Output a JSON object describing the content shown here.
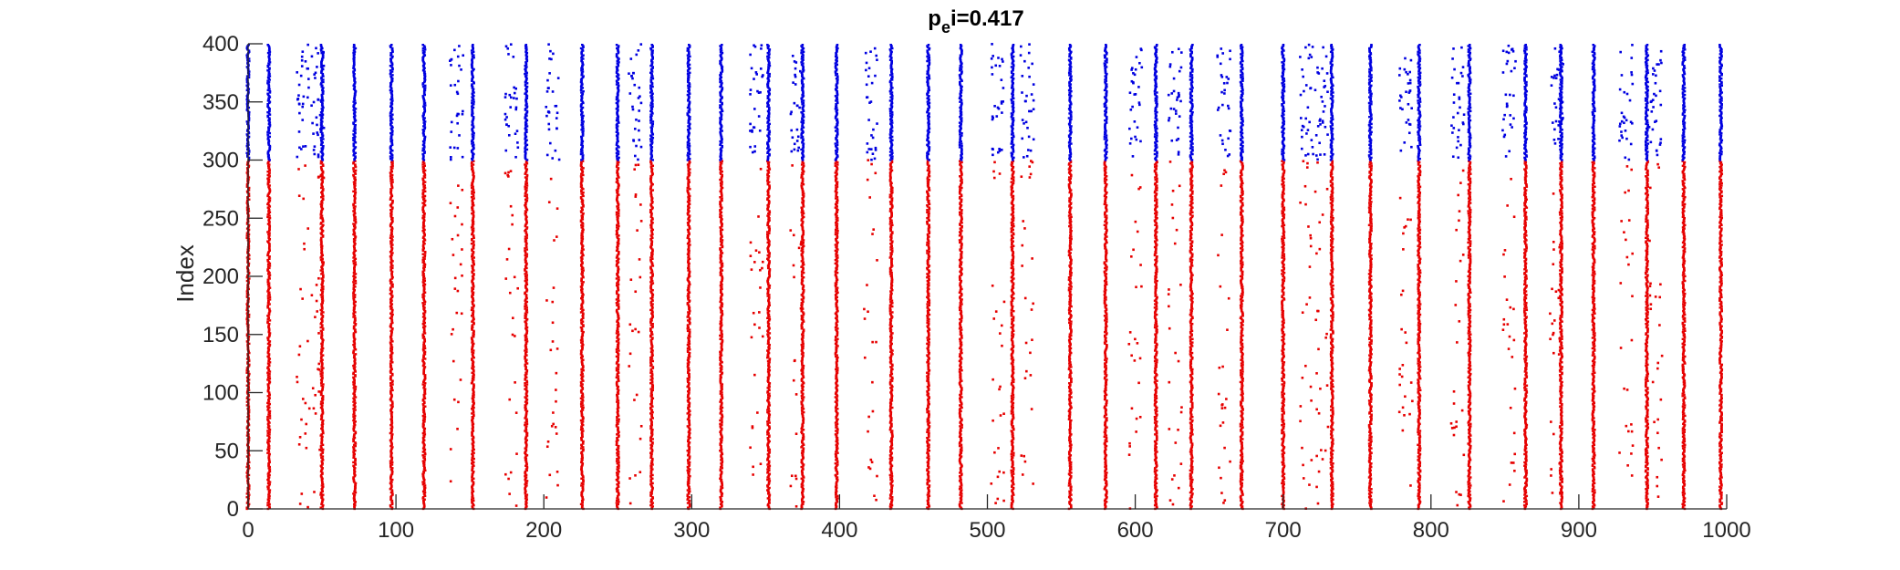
{
  "chart_data": {
    "type": "scatter",
    "title": {
      "base": "p",
      "sub": "e",
      "rest": "i=0.417"
    },
    "xlabel": "",
    "ylabel": "Index",
    "xlim": [
      0,
      1000
    ],
    "ylim": [
      0,
      400
    ],
    "xticks": [
      0,
      100,
      200,
      300,
      400,
      500,
      600,
      700,
      800,
      900,
      1000
    ],
    "yticks": [
      0,
      50,
      100,
      150,
      200,
      250,
      300,
      350,
      400
    ],
    "grid": false,
    "colors": {
      "excitatory": "#e60000",
      "inhibitory": "#0000e0",
      "axis": "#262626"
    },
    "series": [
      {
        "color": "excitatory",
        "index_range": [
          0,
          300
        ],
        "synchronous_event_times": [
          0,
          14,
          50,
          72,
          97,
          119,
          152,
          188,
          226,
          250,
          273,
          298,
          320,
          352,
          375,
          398,
          435,
          460,
          482,
          517,
          556,
          580,
          614,
          638,
          672,
          700,
          733,
          759,
          792,
          826,
          864,
          888,
          910,
          946,
          971,
          996
        ],
        "sparse_event_times": [
          37,
          47,
          141,
          178,
          206,
          262,
          344,
          371,
          421,
          507,
          527,
          600,
          627,
          660,
          716,
          726,
          783,
          818,
          853,
          885,
          932,
          952
        ]
      },
      {
        "color": "inhibitory",
        "index_range": [
          300,
          400
        ],
        "synchronous_event_times": [
          0,
          14,
          50,
          72,
          97,
          119,
          152,
          188,
          226,
          250,
          273,
          298,
          320,
          352,
          375,
          398,
          435,
          460,
          482,
          517,
          556,
          580,
          614,
          638,
          672,
          700,
          733,
          759,
          792,
          826,
          864,
          888,
          910,
          946,
          971,
          996
        ],
        "sparse_event_times": [
          37,
          47,
          141,
          178,
          206,
          262,
          344,
          371,
          421,
          507,
          527,
          600,
          627,
          660,
          716,
          726,
          783,
          818,
          853,
          885,
          932,
          952
        ]
      }
    ]
  }
}
